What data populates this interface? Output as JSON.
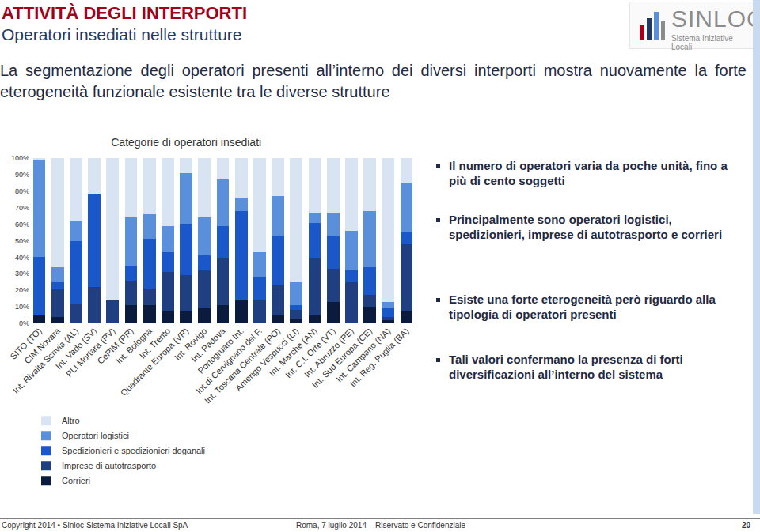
{
  "page": {
    "header": {
      "title": "ATTIVITÀ DEGLI INTERPORTI",
      "subtitle": "Operatori insediati nelle strutture"
    },
    "logo": {
      "name": "SINLOC",
      "tagline": "Sistema Iniziative Locali"
    },
    "intro": "La segmentazione degli operatori presenti all’interno dei diversi interporti mostra nuovamente la forte eterogeneità funzionale esistente tra le diverse strutture",
    "bullets": [
      "Il numero di operatori varia da poche unità, fino a più di cento soggetti",
      "Principalmente sono operatori logistici, spedizionieri, imprese di autotrasporto e corrieri",
      "Esiste una forte eterogeneità però riguardo alla tipologia di operatori presenti",
      "Tali valori confermano la presenza di forti diversificazioni all’interno del sistema"
    ],
    "footer": {
      "left": "Copyright 2014 • Sinloc Sistema Iniziative Locali SpA",
      "center": "Roma, 7 luglio 2014 – Riservato e Confidenziale",
      "page": "20"
    }
  },
  "chart_data": {
    "type": "bar",
    "title": "Categorie di operatori insediati",
    "stacked": true,
    "grid": false,
    "legend": "bottom",
    "categories": [
      "SITO (TO)",
      "CIM Novara",
      "Int. Rivalta Scrivia (AL)",
      "Int. Vado (SV)",
      "PLI Mortara (PV)",
      "CePIM (PR)",
      "Int. Bologna",
      "Int. Trento",
      "Quadrante Europa (VR)",
      "Int. Rovigo",
      "Int. Padova",
      "Portogruaro Int.",
      "Int.di Cervignano del F.",
      "Int. Toscana Centrale (PO)",
      "Amerigo Vespucci (LI)",
      "Int. Marche (AN)",
      "Int. C.I. Orte (VT)",
      "Int. Abruzzo (PE)",
      "Int. Sud Europa (CE)",
      "Int. Campano (NA)",
      "Int. Reg. Puglia (BA)"
    ],
    "series": [
      {
        "name": "Corrieri",
        "color": "#0b1b3d",
        "values": [
          5,
          4,
          0,
          0,
          0,
          11,
          11,
          7,
          7,
          9,
          11,
          14,
          0,
          5,
          3,
          5,
          13,
          0,
          10,
          2,
          7
        ]
      },
      {
        "name": "Imprese di autotrasporto",
        "color": "#1f3f80",
        "values": [
          0,
          17,
          12,
          22,
          14,
          15,
          10,
          24,
          22,
          23,
          28,
          0,
          14,
          18,
          5,
          34,
          20,
          25,
          7,
          2,
          41
        ]
      },
      {
        "name": "Spedizionieri e spedizionieri doganali",
        "color": "#1a57c9",
        "values": [
          35,
          4,
          38,
          56,
          0,
          9,
          30,
          12,
          31,
          9,
          20,
          54,
          14,
          30,
          3,
          22,
          20,
          7,
          17,
          5,
          7
        ]
      },
      {
        "name": "Operatori logistici",
        "color": "#5a8fdc",
        "values": [
          59,
          9,
          12,
          0,
          0,
          29,
          15,
          16,
          31,
          23,
          28,
          8,
          15,
          24,
          14,
          6,
          14,
          24,
          34,
          4,
          30
        ]
      },
      {
        "name": "Altro",
        "color": "#d9e4f3",
        "values": [
          1,
          66,
          38,
          22,
          86,
          36,
          34,
          41,
          9,
          36,
          13,
          24,
          57,
          23,
          75,
          33,
          33,
          44,
          32,
          87,
          15
        ]
      }
    ],
    "ylim": [
      0,
      100
    ],
    "yticks": [
      {
        "value": 0,
        "label": "0%"
      },
      {
        "value": 10,
        "label": "10%"
      },
      {
        "value": 20,
        "label": "20%"
      },
      {
        "value": 30,
        "label": "30%"
      },
      {
        "value": 40,
        "label": "40%"
      },
      {
        "value": 50,
        "label": "50%"
      },
      {
        "value": 60,
        "label": "60%"
      },
      {
        "value": 70,
        "label": "70%"
      },
      {
        "value": 80,
        "label": "80%"
      },
      {
        "value": 90,
        "label": "90%"
      },
      {
        "value": 100,
        "label": "100%"
      }
    ]
  }
}
